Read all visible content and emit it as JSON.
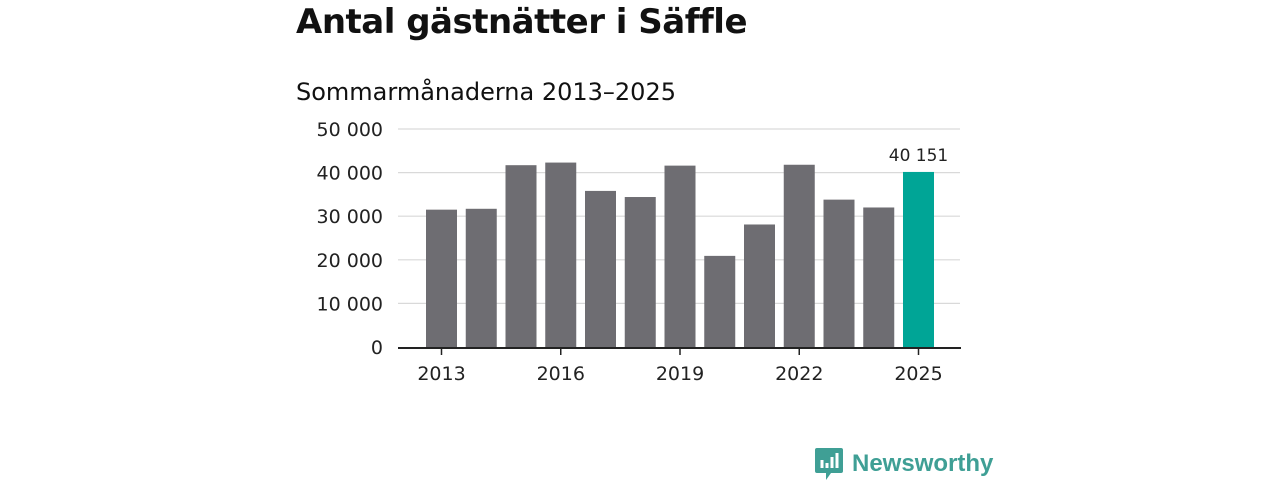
{
  "page": {
    "title": "Antal gästnätter i Säffle",
    "subtitle": "Sommarmånaderna 2013–2025"
  },
  "brand": {
    "name": "Newsworthy",
    "icon": "newsworthy-logo-icon",
    "color": "#3f9f95"
  },
  "colors": {
    "bar": "#6e6d72",
    "highlight": "#00a596",
    "grid": "#d9d9d9",
    "axis": "#222222"
  },
  "chart_data": {
    "type": "bar",
    "categories": [
      "2013",
      "2014",
      "2015",
      "2016",
      "2017",
      "2018",
      "2019",
      "2020",
      "2021",
      "2022",
      "2023",
      "2024",
      "2025"
    ],
    "values": [
      31500,
      31700,
      41700,
      42300,
      35800,
      34400,
      41600,
      20900,
      28100,
      41800,
      33800,
      32000,
      40151
    ],
    "highlight_index": 12,
    "data_labels": [
      {
        "index": 12,
        "text": "40 151"
      }
    ],
    "x_tick_labels": [
      "2013",
      "2016",
      "2019",
      "2022",
      "2025"
    ],
    "y_ticks": [
      0,
      10000,
      20000,
      30000,
      40000,
      50000
    ],
    "y_tick_labels": [
      "0",
      "10 000",
      "20 000",
      "30 000",
      "40 000",
      "50 000"
    ],
    "ylim": [
      0,
      50000
    ],
    "grid": true,
    "legend": "none",
    "xlabel": "",
    "ylabel": ""
  }
}
